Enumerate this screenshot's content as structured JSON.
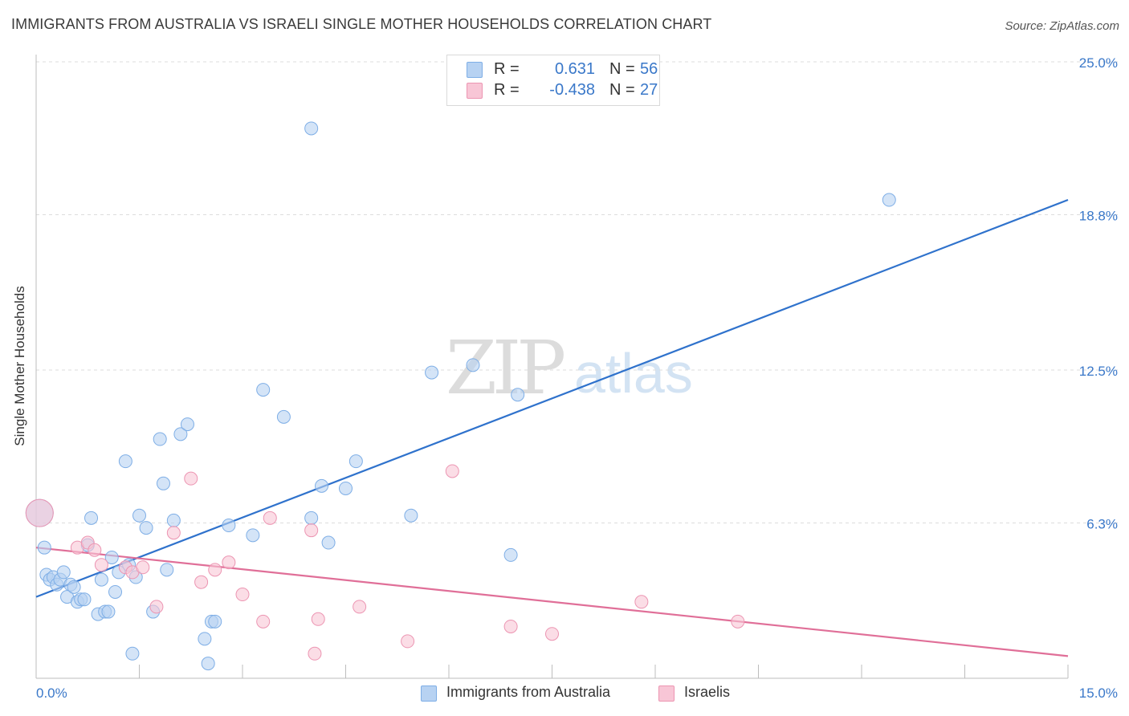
{
  "title": "IMMIGRANTS FROM AUSTRALIA VS ISRAELI SINGLE MOTHER HOUSEHOLDS CORRELATION CHART",
  "source": "Source: ZipAtlas.com",
  "watermark": {
    "zip": "ZIP",
    "atlas": "atlas"
  },
  "legend": {
    "series1": {
      "r_label": "R =",
      "r_value": "0.631",
      "n_label": "N =",
      "n_value": "56"
    },
    "series2": {
      "r_label": "R =",
      "r_value": "-0.438",
      "n_label": "N =",
      "n_value": "27"
    }
  },
  "colors": {
    "blue_fill": "#b7d2f2",
    "blue_stroke": "#7eaee6",
    "blue_line": "#2f72cc",
    "pink_fill": "#f8c6d6",
    "pink_stroke": "#ec95b2",
    "pink_line": "#e06f98",
    "tick_text": "#3a78c9"
  },
  "chart_data": {
    "type": "scatter",
    "title": "IMMIGRANTS FROM AUSTRALIA VS ISRAELI SINGLE MOTHER HOUSEHOLDS CORRELATION CHART",
    "xlabel": "",
    "ylabel": "Single Mother Households",
    "xlim": [
      0,
      15
    ],
    "ylim": [
      0,
      25
    ],
    "x_tick_labels": [
      "0.0%",
      "15.0%"
    ],
    "y_ticks": [
      6.3,
      12.5,
      18.8,
      25.0
    ],
    "y_tick_labels": [
      "6.3%",
      "12.5%",
      "18.8%",
      "25.0%"
    ],
    "grid": true,
    "legend_position": "top-center",
    "series": [
      {
        "name": "Immigrants from Australia",
        "color": "#b7d2f2",
        "trend": {
          "x": [
            0,
            15
          ],
          "y": [
            3.3,
            19.4
          ]
        },
        "points": [
          {
            "x": 0.05,
            "y": 6.7,
            "size": "large"
          },
          {
            "x": 0.12,
            "y": 5.3
          },
          {
            "x": 0.15,
            "y": 4.2
          },
          {
            "x": 0.2,
            "y": 4.0
          },
          {
            "x": 0.25,
            "y": 4.1
          },
          {
            "x": 0.3,
            "y": 3.8
          },
          {
            "x": 0.35,
            "y": 4.0
          },
          {
            "x": 0.4,
            "y": 4.3
          },
          {
            "x": 0.45,
            "y": 3.3
          },
          {
            "x": 0.5,
            "y": 3.8
          },
          {
            "x": 0.55,
            "y": 3.7
          },
          {
            "x": 0.6,
            "y": 3.1
          },
          {
            "x": 0.65,
            "y": 3.2
          },
          {
            "x": 0.7,
            "y": 3.2
          },
          {
            "x": 0.75,
            "y": 5.4
          },
          {
            "x": 0.8,
            "y": 6.5
          },
          {
            "x": 0.9,
            "y": 2.6
          },
          {
            "x": 0.95,
            "y": 4.0
          },
          {
            "x": 1.0,
            "y": 2.7
          },
          {
            "x": 1.05,
            "y": 2.7
          },
          {
            "x": 1.1,
            "y": 4.9
          },
          {
            "x": 1.15,
            "y": 3.5
          },
          {
            "x": 1.2,
            "y": 4.3
          },
          {
            "x": 1.3,
            "y": 8.8
          },
          {
            "x": 1.35,
            "y": 4.6
          },
          {
            "x": 1.4,
            "y": 1.0
          },
          {
            "x": 1.45,
            "y": 4.1
          },
          {
            "x": 1.5,
            "y": 6.6
          },
          {
            "x": 1.6,
            "y": 6.1
          },
          {
            "x": 1.7,
            "y": 2.7
          },
          {
            "x": 1.8,
            "y": 9.7
          },
          {
            "x": 1.85,
            "y": 7.9
          },
          {
            "x": 1.9,
            "y": 4.4
          },
          {
            "x": 2.0,
            "y": 6.4
          },
          {
            "x": 2.1,
            "y": 9.9
          },
          {
            "x": 2.2,
            "y": 10.3
          },
          {
            "x": 2.45,
            "y": 1.6
          },
          {
            "x": 2.5,
            "y": 0.6
          },
          {
            "x": 2.55,
            "y": 2.3
          },
          {
            "x": 2.6,
            "y": 2.3
          },
          {
            "x": 2.8,
            "y": 6.2
          },
          {
            "x": 3.15,
            "y": 5.8
          },
          {
            "x": 3.3,
            "y": 11.7
          },
          {
            "x": 3.6,
            "y": 10.6
          },
          {
            "x": 4.0,
            "y": 6.5
          },
          {
            "x": 4.0,
            "y": 22.3
          },
          {
            "x": 4.15,
            "y": 7.8
          },
          {
            "x": 4.25,
            "y": 5.5
          },
          {
            "x": 4.5,
            "y": 7.7
          },
          {
            "x": 4.65,
            "y": 8.8
          },
          {
            "x": 5.45,
            "y": 6.6
          },
          {
            "x": 5.75,
            "y": 12.4
          },
          {
            "x": 6.35,
            "y": 12.7
          },
          {
            "x": 6.9,
            "y": 5.0
          },
          {
            "x": 7.0,
            "y": 11.5
          },
          {
            "x": 12.4,
            "y": 19.4
          }
        ]
      },
      {
        "name": "Israelis",
        "color": "#f8c6d6",
        "trend": {
          "x": [
            0,
            15
          ],
          "y": [
            5.3,
            0.9
          ]
        },
        "points": [
          {
            "x": 0.05,
            "y": 6.7,
            "size": "large"
          },
          {
            "x": 0.6,
            "y": 5.3
          },
          {
            "x": 0.75,
            "y": 5.5
          },
          {
            "x": 0.85,
            "y": 5.2
          },
          {
            "x": 0.95,
            "y": 4.6
          },
          {
            "x": 1.3,
            "y": 4.5
          },
          {
            "x": 1.4,
            "y": 4.3
          },
          {
            "x": 1.55,
            "y": 4.5
          },
          {
            "x": 1.75,
            "y": 2.9
          },
          {
            "x": 2.0,
            "y": 5.9
          },
          {
            "x": 2.25,
            "y": 8.1
          },
          {
            "x": 2.4,
            "y": 3.9
          },
          {
            "x": 2.6,
            "y": 4.4
          },
          {
            "x": 2.8,
            "y": 4.7
          },
          {
            "x": 3.0,
            "y": 3.4
          },
          {
            "x": 3.3,
            "y": 2.3
          },
          {
            "x": 3.4,
            "y": 6.5
          },
          {
            "x": 4.0,
            "y": 6.0
          },
          {
            "x": 4.05,
            "y": 1.0
          },
          {
            "x": 4.1,
            "y": 2.4
          },
          {
            "x": 4.7,
            "y": 2.9
          },
          {
            "x": 5.4,
            "y": 1.5
          },
          {
            "x": 6.05,
            "y": 8.4
          },
          {
            "x": 6.9,
            "y": 2.1
          },
          {
            "x": 7.5,
            "y": 1.8
          },
          {
            "x": 8.8,
            "y": 3.1
          },
          {
            "x": 10.2,
            "y": 2.3
          }
        ]
      }
    ]
  }
}
